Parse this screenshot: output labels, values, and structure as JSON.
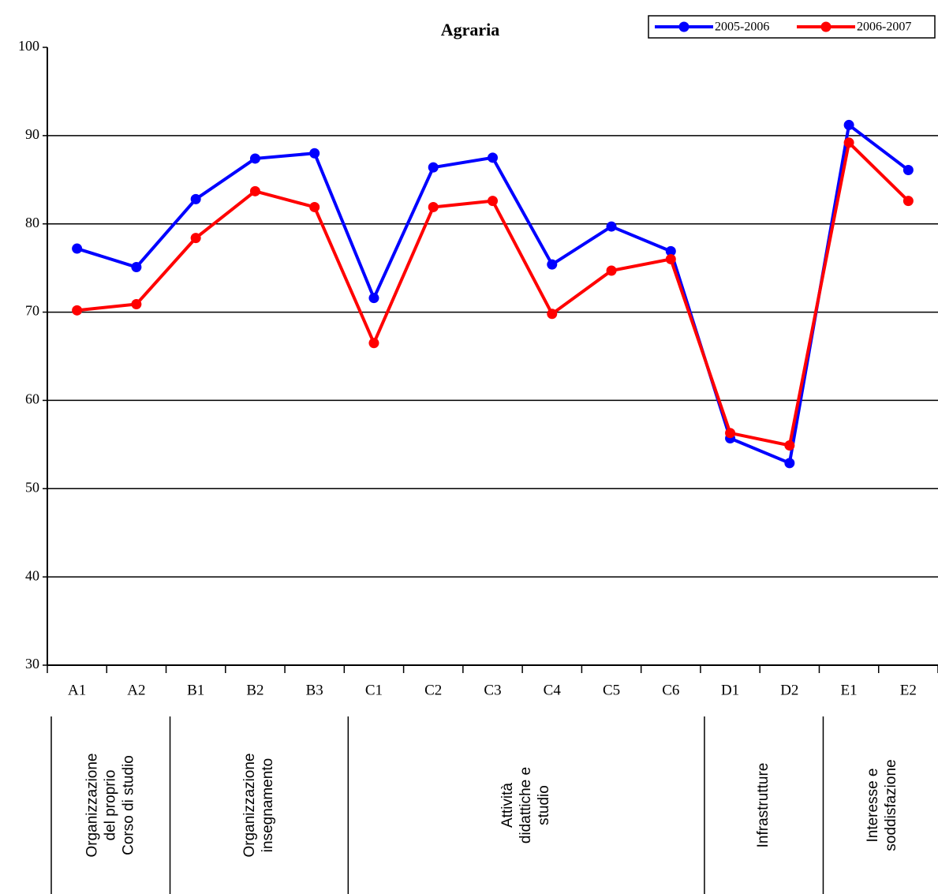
{
  "chart_data": {
    "type": "line",
    "title": "Agraria",
    "categories": [
      "A1",
      "A2",
      "B1",
      "B2",
      "B3",
      "C1",
      "C2",
      "C3",
      "C4",
      "C5",
      "C6",
      "D1",
      "D2",
      "E1",
      "E2"
    ],
    "series": [
      {
        "name": "2005-2006",
        "color": "#0000ff",
        "values": [
          77.2,
          75.1,
          82.8,
          87.4,
          88.0,
          71.6,
          86.4,
          87.5,
          75.4,
          79.7,
          76.9,
          55.7,
          52.9,
          91.2,
          86.1
        ]
      },
      {
        "name": "2006-2007",
        "color": "#ff0000",
        "values": [
          70.2,
          70.9,
          78.4,
          83.7,
          81.9,
          66.5,
          81.9,
          82.6,
          69.8,
          74.7,
          76.0,
          56.3,
          54.9,
          89.2,
          82.6
        ]
      }
    ],
    "ylim": [
      30,
      100
    ],
    "yticks": [
      30,
      40,
      50,
      60,
      70,
      80,
      90,
      100
    ],
    "grid": true,
    "legend": "top-right",
    "groups": [
      [
        "Organizzazione",
        "del proprio",
        "Corso di studio"
      ],
      [
        "Organizzazione",
        "insegnamento"
      ],
      [
        "Attività",
        "didattiche e",
        "studio"
      ],
      [
        "Infrastrutture"
      ],
      [
        "Interesse e",
        "soddisfazione"
      ]
    ]
  }
}
